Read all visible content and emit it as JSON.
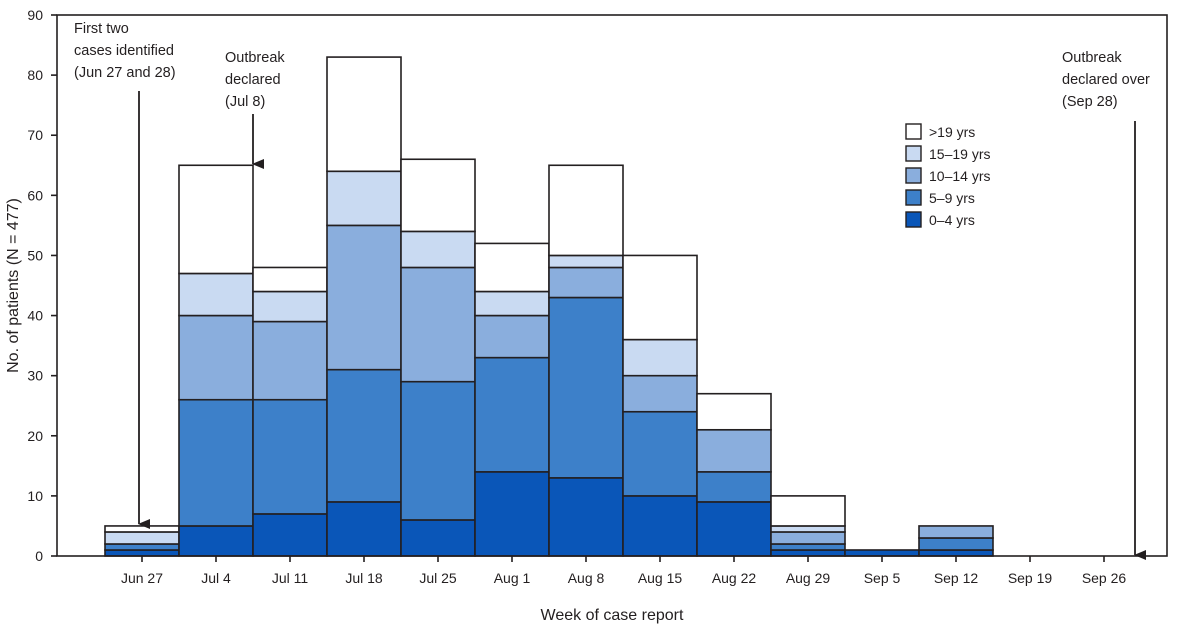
{
  "chart_data": {
    "type": "bar",
    "stacked": true,
    "xlabel": "Week of case report",
    "ylabel": "No. of patients (N = 477)",
    "ylim": [
      0,
      90
    ],
    "yticks": [
      0,
      10,
      20,
      30,
      40,
      50,
      60,
      70,
      80,
      90
    ],
    "categories": [
      "Jun 27",
      "Jul 4",
      "Jul 11",
      "Jul 18",
      "Jul 25",
      "Aug 1",
      "Aug 8",
      "Aug 15",
      "Aug 22",
      "Aug 29",
      "Sep 5",
      "Sep 12",
      "Sep 19",
      "Sep 26"
    ],
    "series": [
      {
        "name": "0–4 yrs",
        "color": "#0a56b8",
        "values": [
          1,
          5,
          7,
          9,
          6,
          14,
          13,
          10,
          9,
          1,
          1,
          1,
          0,
          0
        ]
      },
      {
        "name": "5–9 yrs",
        "color": "#3d80c9",
        "values": [
          1,
          21,
          19,
          22,
          23,
          19,
          30,
          14,
          5,
          1,
          0,
          2,
          0,
          0
        ]
      },
      {
        "name": "10–14 yrs",
        "color": "#8aaedd",
        "values": [
          0,
          14,
          13,
          24,
          19,
          7,
          5,
          6,
          7,
          2,
          0,
          2,
          0,
          0
        ]
      },
      {
        "name": "15–19 yrs",
        "color": "#c9daf2",
        "values": [
          2,
          7,
          5,
          9,
          6,
          4,
          2,
          6,
          0,
          1,
          0,
          0,
          0,
          0
        ]
      },
      {
        "name": ">19 yrs",
        "color": "#ffffff",
        "values": [
          1,
          18,
          4,
          19,
          12,
          8,
          15,
          14,
          6,
          5,
          0,
          0,
          0,
          0
        ]
      }
    ],
    "legend": {
      "position": "top-right",
      "order": [
        ">19 yrs",
        "15–19 yrs",
        "10–14 yrs",
        "5–9 yrs",
        "0–4 yrs"
      ]
    },
    "grid": false,
    "annotations": [
      {
        "lines": [
          "First two",
          "cases identified",
          "(Jun 27 and 28)"
        ],
        "points_to": "Jun 27"
      },
      {
        "lines": [
          "Outbreak",
          "declared",
          "(Jul 8)"
        ],
        "points_to": "Jul 8"
      },
      {
        "lines": [
          "Outbreak",
          "declared over",
          "(Sep 28)"
        ],
        "points_to": "Sep 28"
      }
    ]
  }
}
